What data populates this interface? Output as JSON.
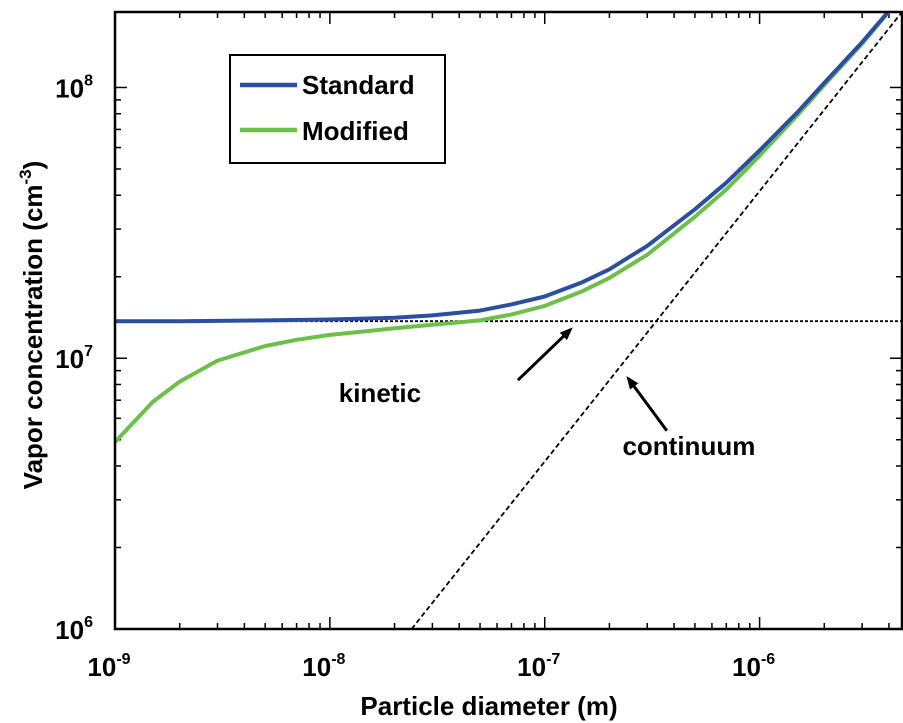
{
  "chart_data": {
    "type": "line",
    "xlabel": "Particle diameter  (m)",
    "ylabel_main": "Vapor concentration  (cm",
    "ylabel_sup": "-3",
    "ylabel_close": ")",
    "x_scale": "log",
    "y_scale": "log",
    "xlim": [
      1e-09,
      4.6e-06
    ],
    "ylim": [
      1000000.0,
      190000000.0
    ],
    "grid": false,
    "legend_position": "top-left",
    "x_ticks": [
      {
        "value": 1e-09,
        "base": "10",
        "exp": "-9"
      },
      {
        "value": 1e-08,
        "base": "10",
        "exp": "-8"
      },
      {
        "value": 1e-07,
        "base": "10",
        "exp": "-7"
      },
      {
        "value": 1e-06,
        "base": "10",
        "exp": "-6"
      }
    ],
    "y_ticks": [
      {
        "value": 1000000.0,
        "base": "10",
        "exp": "6"
      },
      {
        "value": 10000000.0,
        "base": "10",
        "exp": "7"
      },
      {
        "value": 100000000.0,
        "base": "10",
        "exp": "8"
      }
    ],
    "series": [
      {
        "name": "Standard",
        "color": "#2b4fa0",
        "style": "solid",
        "x": [
          1e-09,
          2e-09,
          5e-09,
          1e-08,
          2e-08,
          3e-08,
          5e-08,
          7e-08,
          1e-07,
          1.5e-07,
          2e-07,
          3e-07,
          5e-07,
          7e-07,
          1e-06,
          1.5e-06,
          2e-06,
          3e-06,
          4.6e-06
        ],
        "y": [
          13700000.0,
          13700000.0,
          13800000.0,
          13900000.0,
          14100000.0,
          14400000.0,
          15000000.0,
          15800000.0,
          16900000.0,
          19100000.0,
          21300000.0,
          26000000.0,
          35500000.0,
          44500000.0,
          58500000.0,
          81000000.0,
          104000000.0,
          147000000.0,
          218000000.0
        ]
      },
      {
        "name": "Modified",
        "color": "#6cc04a",
        "style": "solid",
        "x": [
          1e-09,
          1.5e-09,
          2e-09,
          3e-09,
          5e-09,
          7e-09,
          1e-08,
          2e-08,
          3e-08,
          5e-08,
          7e-08,
          1e-07,
          1.5e-07,
          2e-07,
          3e-07,
          5e-07,
          7e-07,
          1e-06,
          1.5e-06,
          2e-06,
          3e-06,
          4.6e-06
        ],
        "y": [
          4900000.0,
          6900000.0,
          8200000.0,
          9800000.0,
          11100000.0,
          11700000.0,
          12200000.0,
          12900000.0,
          13300000.0,
          13800000.0,
          14500000.0,
          15600000.0,
          17700000.0,
          19800000.0,
          24100000.0,
          33300000.0,
          42000000.0,
          56000000.0,
          79000000.0,
          102000000.0,
          145000000.0,
          218000000.0
        ]
      },
      {
        "name": "",
        "color": "#000000",
        "style": "dotted",
        "x": [
          1e-09,
          4.6e-06
        ],
        "y": [
          13700000.0,
          13700000.0
        ]
      },
      {
        "name": "",
        "color": "#000000",
        "style": "dashed",
        "x": [
          2.4e-08,
          4.6e-06
        ],
        "y": [
          1000000.0,
          190000000.0
        ]
      }
    ],
    "legend": [
      {
        "label": "Standard",
        "color": "#2b4fa0"
      },
      {
        "label": "Modified",
        "color": "#6cc04a"
      }
    ],
    "annotations": [
      {
        "text": "kinetic",
        "arrow_to": {
          "x": 1.35e-07,
          "y": 13000000.0
        },
        "arrow_from": {
          "x": 7.5e-08,
          "y": 8300000.0
        },
        "label_at": {
          "x": 1.1e-08,
          "y": 6900000.0
        }
      },
      {
        "text": "continuum",
        "arrow_to": {
          "x": 2.4e-07,
          "y": 8600000.0
        },
        "arrow_from": {
          "x": 3.7e-07,
          "y": 5400000.0
        },
        "label_at": {
          "x": 2.3e-07,
          "y": 4400000.0
        }
      }
    ]
  }
}
